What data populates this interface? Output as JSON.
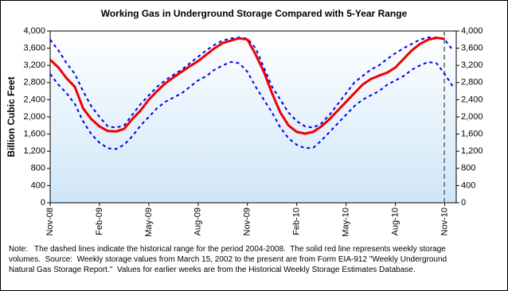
{
  "chart_data": {
    "type": "line",
    "title": "Working Gas in Underground Storage Compared with 5-Year Range",
    "y_label": "Billion Cubic Feet",
    "x": [
      0,
      0.5,
      1,
      1.5,
      2,
      2.5,
      3,
      3.5,
      4,
      4.5,
      5,
      5.5,
      6,
      6.5,
      7,
      7.5,
      8,
      8.5,
      9,
      9.5,
      10,
      10.5,
      11,
      11.5,
      12,
      12.5,
      13,
      13.5,
      14,
      14.5,
      15,
      15.5,
      16,
      16.5,
      17,
      17.5,
      18,
      18.5,
      19,
      19.5,
      20,
      20.5,
      21,
      21.5,
      22,
      22.5,
      23,
      23.5,
      24,
      24.5
    ],
    "series": [
      {
        "color": "#0000ee",
        "dash": true,
        "values": [
          3800,
          3550,
          3250,
          3000,
          2600,
          2250,
          2000,
          1780,
          1750,
          1800,
          2050,
          2300,
          2500,
          2700,
          2850,
          2980,
          3100,
          3250,
          3400,
          3550,
          3680,
          3780,
          3830,
          3850,
          3820,
          3600,
          3150,
          2700,
          2400,
          2100,
          1900,
          1780,
          1750,
          1850,
          2050,
          2300,
          2550,
          2800,
          2950,
          3100,
          3200,
          3350,
          3480,
          3600,
          3700,
          3800,
          3850,
          3850,
          3800,
          3550
        ]
      },
      {
        "color": "#0000ee",
        "dash": true,
        "values": [
          3000,
          2750,
          2550,
          2300,
          1900,
          1600,
          1400,
          1270,
          1250,
          1350,
          1550,
          1800,
          2000,
          2200,
          2350,
          2450,
          2550,
          2700,
          2850,
          2950,
          3100,
          3200,
          3280,
          3250,
          3050,
          2700,
          2400,
          2100,
          1750,
          1500,
          1350,
          1270,
          1280,
          1450,
          1650,
          1850,
          2050,
          2250,
          2400,
          2500,
          2600,
          2750,
          2850,
          2950,
          3100,
          3200,
          3280,
          3250,
          3000,
          2700
        ]
      },
      {
        "color": "#ee0000",
        "dash": false,
        "values": [
          3330,
          3150,
          2900,
          2700,
          2200,
          1950,
          1780,
          1670,
          1660,
          1720,
          1950,
          2150,
          2400,
          2600,
          2780,
          2920,
          3050,
          3180,
          3300,
          3450,
          3600,
          3720,
          3780,
          3830,
          3800,
          3450,
          3050,
          2550,
          2100,
          1800,
          1650,
          1610,
          1650,
          1780,
          1950,
          2150,
          2350,
          2550,
          2750,
          2880,
          2960,
          3030,
          3150,
          3350,
          3550,
          3700,
          3800,
          3840,
          3820,
          null
        ]
      }
    ],
    "xlim": [
      0,
      24.7
    ],
    "xticks": [
      {
        "value": 0,
        "label": "Nov-08"
      },
      {
        "value": 3,
        "label": "Feb-09"
      },
      {
        "value": 6,
        "label": "May-09"
      },
      {
        "value": 9,
        "label": "Aug-09"
      },
      {
        "value": 12,
        "label": "Nov-09"
      },
      {
        "value": 15,
        "label": "Feb-10"
      },
      {
        "value": 18,
        "label": "May-10"
      },
      {
        "value": 21,
        "label": "Aug-10"
      },
      {
        "value": 24,
        "label": "Nov-10"
      }
    ],
    "ylim": [
      0,
      4000
    ],
    "yticks": [
      0,
      400,
      800,
      {
        "value": 1200,
        "label": "1,200"
      },
      {
        "value": 1600,
        "label": "1,600"
      },
      {
        "value": 2000,
        "label": "2,000"
      },
      {
        "value": 2400,
        "label": "2,400"
      },
      {
        "value": 2800,
        "label": "2,800"
      },
      {
        "value": 3200,
        "label": "3,200"
      },
      {
        "value": 3600,
        "label": "3,600"
      },
      {
        "value": 4000,
        "label": "4,000"
      }
    ],
    "y2lim": [
      0,
      4000
    ],
    "y2ticks": [
      0,
      400,
      800,
      {
        "value": 1200,
        "label": "1,200"
      },
      {
        "value": 1600,
        "label": "1,600"
      },
      {
        "value": 2000,
        "label": "2,000"
      },
      {
        "value": 2400,
        "label": "2,400"
      },
      {
        "value": 2800,
        "label": "2,800"
      },
      {
        "value": 3200,
        "label": "3,200"
      },
      {
        "value": 3600,
        "label": "3,600"
      },
      {
        "value": 4000,
        "label": "4,000"
      }
    ],
    "note": [
      "Note:   The dashed lines indicate the historical range for the period 2004-2008.  The solid red line represents weekly storage",
      "volumes.  Source:  Weekly storage values from March 15, 2002 to the present are from Form EIA-912 \"Weekly Underground",
      "Natural Gas Storage Report.\"  Values for earlier weeks are from the Historical Weekly Storage Estimates Database."
    ]
  }
}
